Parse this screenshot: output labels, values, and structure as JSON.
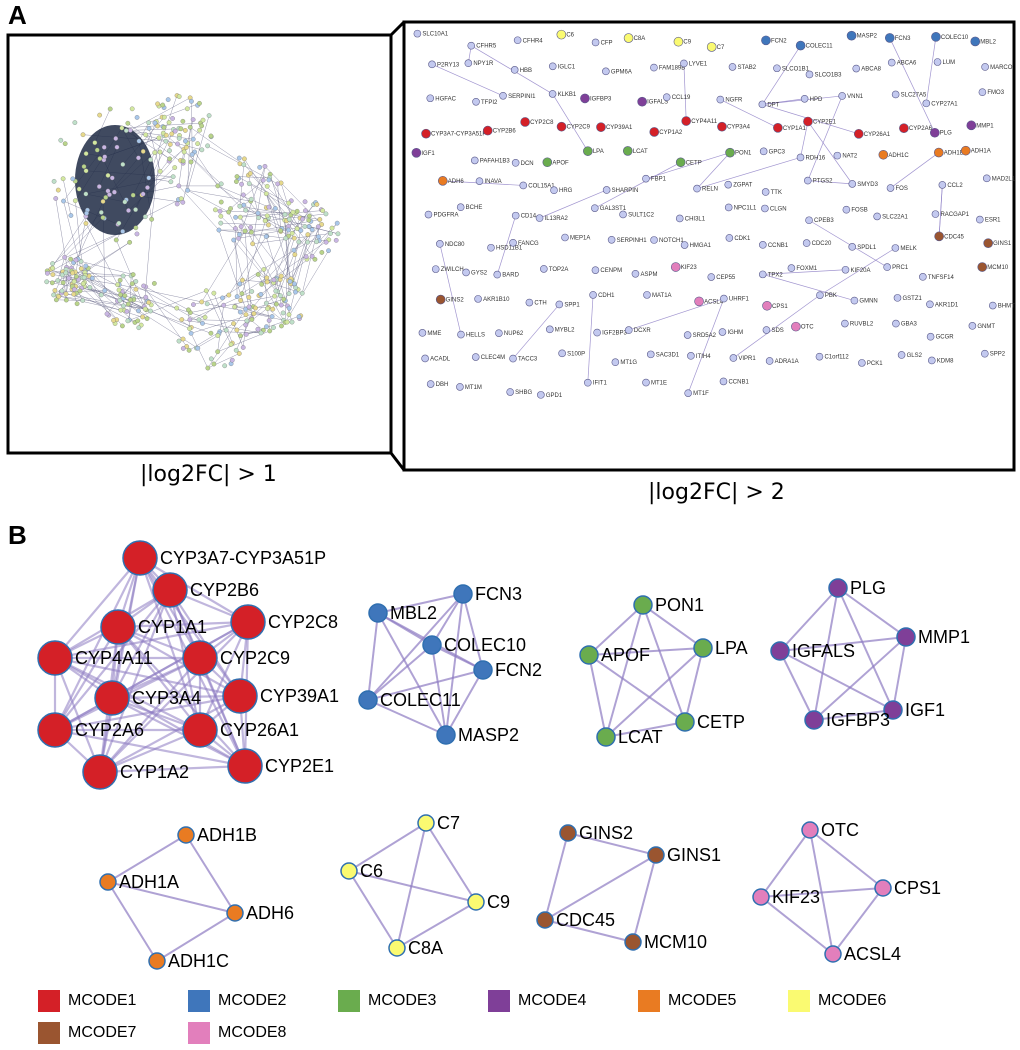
{
  "panel_a": {
    "letter": "A",
    "caption_left": "|log2FC| > 1",
    "caption_right": "|log2FC| > 2",
    "nodes": [
      {
        "label": "SLC10A1"
      },
      {
        "label": "CFHR5"
      },
      {
        "label": "CFHR4"
      },
      {
        "label": "C6"
      },
      {
        "label": "CFP"
      },
      {
        "label": "C8A"
      },
      {
        "label": "C9"
      },
      {
        "label": "C7"
      },
      {
        "label": "FCN2"
      },
      {
        "label": "COLEC11"
      },
      {
        "label": "MASP2"
      },
      {
        "label": "FCN3"
      },
      {
        "label": "COLEC10"
      },
      {
        "label": "MBL2"
      },
      {
        "label": "P2RY13"
      },
      {
        "label": "NPY1R"
      },
      {
        "label": "HBB"
      },
      {
        "label": "IGLC1"
      },
      {
        "label": "GPM6A"
      },
      {
        "label": "FAM189B"
      },
      {
        "label": "LYVE1"
      },
      {
        "label": "STAB2"
      },
      {
        "label": "SLCO1B1"
      },
      {
        "label": "SLCO1B3"
      },
      {
        "label": "ABCA8"
      },
      {
        "label": "ABCA6"
      },
      {
        "label": "LUM"
      },
      {
        "label": "MARCO"
      },
      {
        "label": "HGFAC"
      },
      {
        "label": "TFPI2"
      },
      {
        "label": "SERPINI1"
      },
      {
        "label": "KLKB1"
      },
      {
        "label": "IGFBP3"
      },
      {
        "label": "IGFALS"
      },
      {
        "label": "CCL19"
      },
      {
        "label": "NGFR"
      },
      {
        "label": "DPT"
      },
      {
        "label": "HPD"
      },
      {
        "label": "VNN1"
      },
      {
        "label": "SLC27A5"
      },
      {
        "label": "CYP27A1"
      },
      {
        "label": "FMO3"
      },
      {
        "label": "CYP3A7-CYP3A51P"
      },
      {
        "label": "CYP2B6"
      },
      {
        "label": "CYP2C8"
      },
      {
        "label": "CYP2C9"
      },
      {
        "label": "CYP39A1"
      },
      {
        "label": "CYP1A2"
      },
      {
        "label": "CYP4A11"
      },
      {
        "label": "CYP3A4"
      },
      {
        "label": "CYP1A1"
      },
      {
        "label": "CYP2E1"
      },
      {
        "label": "CYP26A1"
      },
      {
        "label": "CYP2A6"
      },
      {
        "label": "PLG"
      },
      {
        "label": "MMP1"
      },
      {
        "label": "IGF1"
      },
      {
        "label": "PAFAH1B3"
      },
      {
        "label": "DCN"
      },
      {
        "label": "APOF"
      },
      {
        "label": "LPA"
      },
      {
        "label": "LCAT"
      },
      {
        "label": "CETP"
      },
      {
        "label": "PON1"
      },
      {
        "label": "GPC3"
      },
      {
        "label": "RDH16"
      },
      {
        "label": "NAT2"
      },
      {
        "label": "ADH1C"
      },
      {
        "label": "ADH1B"
      },
      {
        "label": "ADH1A"
      },
      {
        "label": "ADH6"
      },
      {
        "label": "INAVA"
      },
      {
        "label": "COL15A1"
      },
      {
        "label": "HRG"
      },
      {
        "label": "SHARPIN"
      },
      {
        "label": "FBP1"
      },
      {
        "label": "RELN"
      },
      {
        "label": "ZGPAT"
      },
      {
        "label": "TTK"
      },
      {
        "label": "PTGS2"
      },
      {
        "label": "SMYD3"
      },
      {
        "label": "FOS"
      },
      {
        "label": "CCL2"
      },
      {
        "label": "MAD2L1"
      },
      {
        "label": "PDGFRA"
      },
      {
        "label": "BCHE"
      },
      {
        "label": "CD14"
      },
      {
        "label": "IL13RA2"
      },
      {
        "label": "GAL3ST1"
      },
      {
        "label": "SULT1C2"
      },
      {
        "label": "CHI3L1"
      },
      {
        "label": "NPC1L1"
      },
      {
        "label": "CLGN"
      },
      {
        "label": "CPEB3"
      },
      {
        "label": "FOSB"
      },
      {
        "label": "SLC22A1"
      },
      {
        "label": "RACGAP1"
      },
      {
        "label": "ESR1"
      },
      {
        "label": "NDC80"
      },
      {
        "label": "HSD11B1"
      },
      {
        "label": "FANCG"
      },
      {
        "label": "MEP1A"
      },
      {
        "label": "SERPINH1"
      },
      {
        "label": "NOTCH1"
      },
      {
        "label": "HMGA1"
      },
      {
        "label": "CDK1"
      },
      {
        "label": "CCNB1"
      },
      {
        "label": "CDC20"
      },
      {
        "label": "SPDL1"
      },
      {
        "label": "MELK"
      },
      {
        "label": "CDC45"
      },
      {
        "label": "GINS1"
      },
      {
        "label": "ZWILCH"
      },
      {
        "label": "GYS2"
      },
      {
        "label": "BARD"
      },
      {
        "label": "TOP2A"
      },
      {
        "label": "CENPM"
      },
      {
        "label": "ASPM"
      },
      {
        "label": "KIF23"
      },
      {
        "label": "CEP55"
      },
      {
        "label": "TPX2"
      },
      {
        "label": "FOXM1"
      },
      {
        "label": "KIF20A"
      },
      {
        "label": "PRC1"
      },
      {
        "label": "TNFSF14"
      },
      {
        "label": "MCM10"
      },
      {
        "label": "GINS2"
      },
      {
        "label": "AKR1B10"
      },
      {
        "label": "CTH"
      },
      {
        "label": "SPP1"
      },
      {
        "label": "CDH1"
      },
      {
        "label": "MAT1A"
      },
      {
        "label": "ACSL4"
      },
      {
        "label": "UHRF1"
      },
      {
        "label": "CPS1"
      },
      {
        "label": "PBK"
      },
      {
        "label": "GMNN"
      },
      {
        "label": "GSTZ1"
      },
      {
        "label": "AKR1D1"
      },
      {
        "label": "BHMT"
      },
      {
        "label": "MME"
      },
      {
        "label": "HELLS"
      },
      {
        "label": "NUP62"
      },
      {
        "label": "MYBL2"
      },
      {
        "label": "IGF2BP3"
      },
      {
        "label": "DCXR"
      },
      {
        "label": "SRD5A2"
      },
      {
        "label": "IGHM"
      },
      {
        "label": "SDS"
      },
      {
        "label": "OTC"
      },
      {
        "label": "RUVBL2"
      },
      {
        "label": "GBA3"
      },
      {
        "label": "GCGR"
      },
      {
        "label": "GNMT"
      },
      {
        "label": "ACADL"
      },
      {
        "label": "CLEC4M"
      },
      {
        "label": "TACC3"
      },
      {
        "label": "S100P"
      },
      {
        "label": "MT1G"
      },
      {
        "label": "SAC3D1"
      },
      {
        "label": "ITIH4"
      },
      {
        "label": "VIPR1"
      },
      {
        "label": "ADRA1A"
      },
      {
        "label": "C1orf112"
      },
      {
        "label": "PCK1"
      },
      {
        "label": "GLS2"
      },
      {
        "label": "KDM8"
      },
      {
        "label": "SPP2"
      },
      {
        "label": "DBH"
      },
      {
        "label": "MT1M"
      },
      {
        "label": "SHBG"
      },
      {
        "label": "GPD1"
      },
      {
        "label": "IFIT1"
      },
      {
        "label": "MT1E"
      },
      {
        "label": "MT1F"
      },
      {
        "label": "CCNB1"
      }
    ]
  },
  "panel_b": {
    "letter": "B",
    "clusters": [
      {
        "module": "MCODE1",
        "color": "#d42027",
        "nodes": [
          "CYP3A7-CYP3A51P",
          "CYP2B6",
          "CYP2C8",
          "CYP1A1",
          "CYP4A11",
          "CYP2C9",
          "CYP3A4",
          "CYP39A1",
          "CYP2A6",
          "CYP26A1",
          "CYP1A2",
          "CYP2E1"
        ]
      },
      {
        "module": "MCODE2",
        "color": "#3f76bb",
        "nodes": [
          "MBL2",
          "FCN3",
          "COLEC10",
          "FCN2",
          "COLEC11",
          "MASP2"
        ]
      },
      {
        "module": "MCODE3",
        "color": "#6aac4e",
        "nodes": [
          "PON1",
          "APOF",
          "LPA",
          "CETP",
          "LCAT"
        ]
      },
      {
        "module": "MCODE4",
        "color": "#7f3f98",
        "nodes": [
          "PLG",
          "MMP1",
          "IGFALS",
          "IGF1",
          "IGFBP3"
        ]
      },
      {
        "module": "MCODE5",
        "color": "#e97b22",
        "nodes": [
          "ADH1B",
          "ADH1A",
          "ADH6",
          "ADH1C"
        ]
      },
      {
        "module": "MCODE6",
        "color": "#fafa71",
        "nodes": [
          "C7",
          "C6",
          "C9",
          "C8A"
        ]
      },
      {
        "module": "MCODE7",
        "color": "#9a5530",
        "nodes": [
          "GINS2",
          "GINS1",
          "CDC45",
          "MCM10"
        ]
      },
      {
        "module": "MCODE8",
        "color": "#e27fbc",
        "nodes": [
          "OTC",
          "CPS1",
          "KIF23",
          "ACSL4"
        ]
      }
    ]
  },
  "legend": [
    {
      "label": "MCODE1",
      "color": "#d42027"
    },
    {
      "label": "MCODE2",
      "color": "#3f76bb"
    },
    {
      "label": "MCODE3",
      "color": "#6aac4e"
    },
    {
      "label": "MCODE4",
      "color": "#7f3f98"
    },
    {
      "label": "MCODE5",
      "color": "#e97b22"
    },
    {
      "label": "MCODE6",
      "color": "#fafa71"
    },
    {
      "label": "MCODE7",
      "color": "#9a5530"
    },
    {
      "label": "MCODE8",
      "color": "#e27fbc"
    }
  ]
}
